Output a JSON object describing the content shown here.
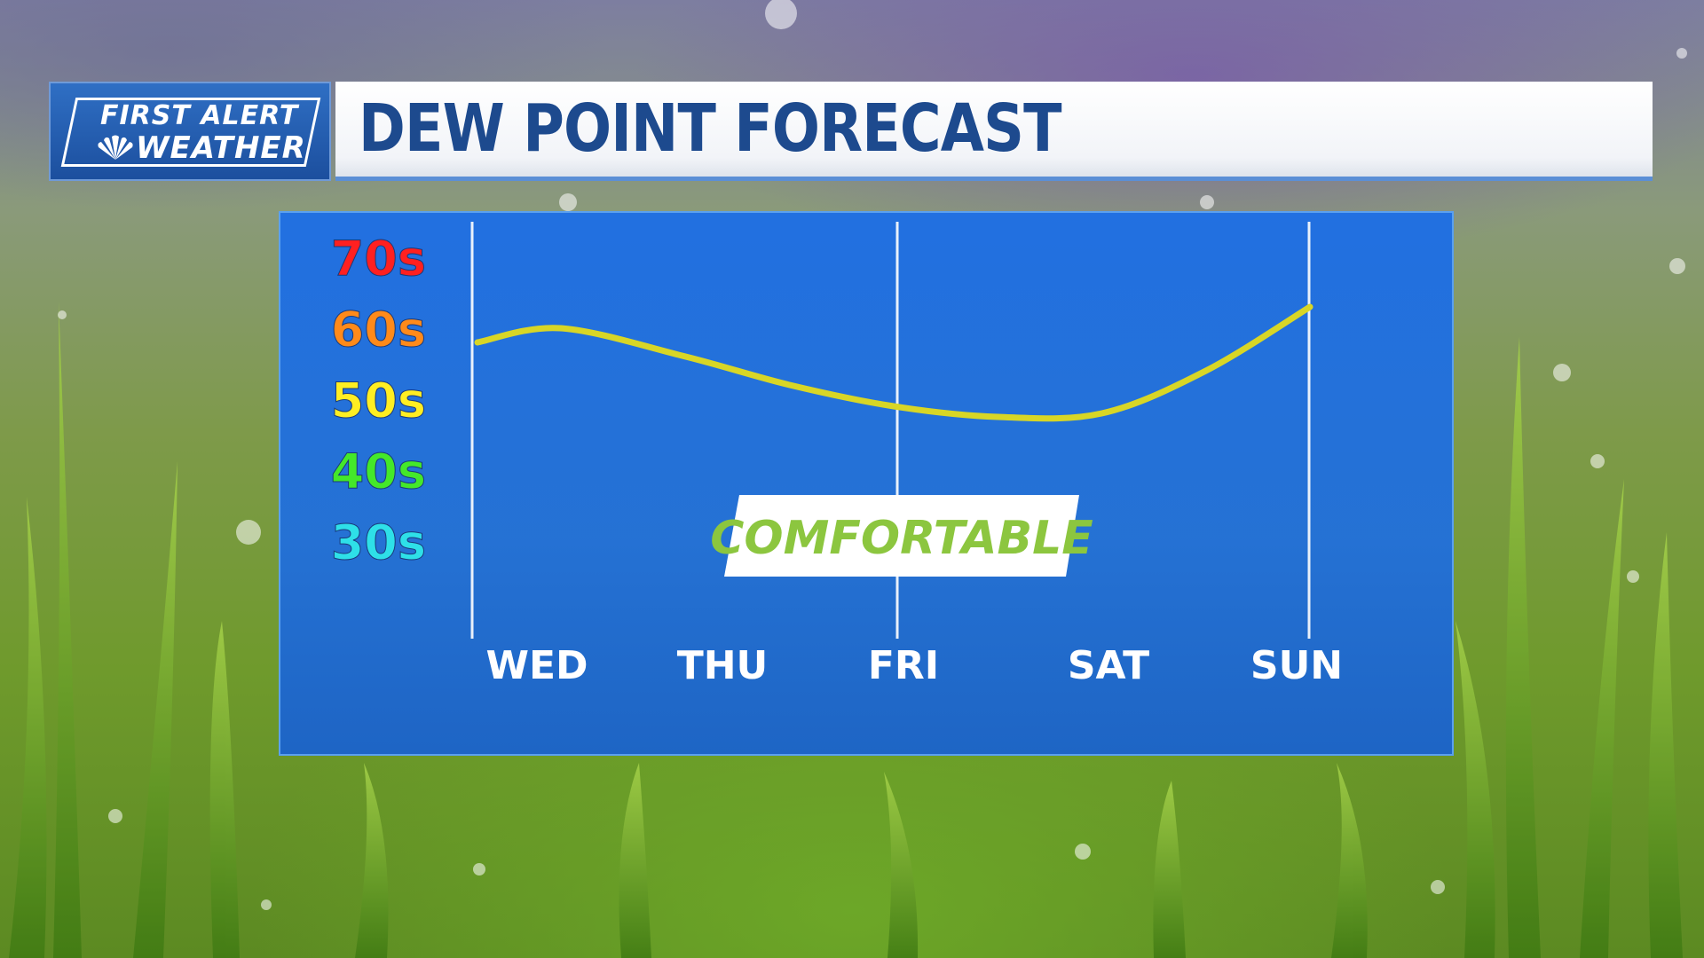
{
  "header": {
    "logo_line1": "FIRST ALERT",
    "logo_line2": "WEATHER",
    "title": "DEW POINT FORECAST"
  },
  "colors": {
    "header_blue": "#1d4a8e",
    "panel_blue": "#1c6ee6",
    "curve": "#d8d626",
    "label_70s": "#ff2020",
    "label_60s": "#ff8a1a",
    "label_50s": "#ffee22",
    "label_40s": "#44e82a",
    "label_30s": "#2ee0e8",
    "comfortable_text": "#8cc63f"
  },
  "chart_data": {
    "type": "line",
    "title": "DEW POINT FORECAST",
    "y_tick_labels": [
      "70s",
      "60s",
      "50s",
      "40s",
      "30s"
    ],
    "ylim": [
      30,
      80
    ],
    "categories": [
      "WED",
      "THU",
      "FRI",
      "SAT",
      "SUN"
    ],
    "divider_days": [
      "WED",
      "FRI",
      "SUN"
    ],
    "series": [
      {
        "x": [
          0,
          0.4,
          1.0,
          1.5,
          2.0,
          2.5,
          3.0,
          3.5,
          4.0
        ],
        "values": [
          63,
          65,
          61,
          57,
          54,
          52.5,
          53,
          59,
          68
        ]
      }
    ],
    "annotation": "COMFORTABLE",
    "grid": false,
    "legend": "none"
  }
}
